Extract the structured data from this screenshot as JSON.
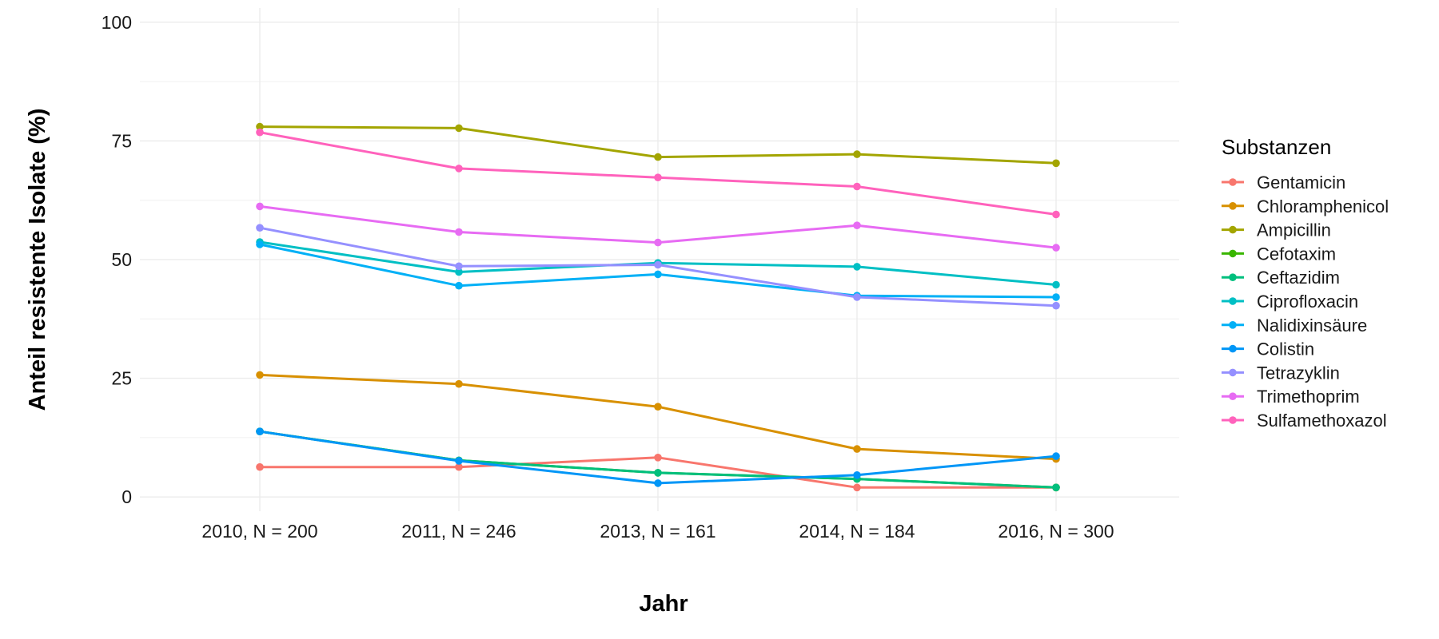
{
  "chart_data": {
    "type": "line",
    "xlabel": "Jahr",
    "ylabel": "Anteil resistente Isolate (%)",
    "categories": [
      "2010, N = 200",
      "2011, N = 246",
      "2013, N = 161",
      "2014, N = 184",
      "2016, N = 300"
    ],
    "ylim": [
      -3,
      103
    ],
    "yticks": [
      0,
      25,
      50,
      75,
      100
    ],
    "grid": true,
    "legend": {
      "title": "Substanzen",
      "position": "right"
    },
    "series": [
      {
        "name": "Gentamicin",
        "color": "#F8766D",
        "values": [
          6.3,
          6.3,
          8.3,
          2.0,
          2.0
        ]
      },
      {
        "name": "Chloramphenicol",
        "color": "#D89000",
        "values": [
          25.7,
          23.8,
          19.0,
          10.1,
          8.0
        ]
      },
      {
        "name": "Ampicillin",
        "color": "#A3A500",
        "values": [
          78.0,
          77.7,
          71.6,
          72.2,
          70.3
        ]
      },
      {
        "name": "Cefotaxim",
        "color": "#39B600",
        "values": [
          13.8,
          7.7,
          5.1,
          3.8,
          2.0
        ]
      },
      {
        "name": "Ceftazidim",
        "color": "#00BF7D",
        "values": [
          13.8,
          7.7,
          5.1,
          3.8,
          2.0
        ]
      },
      {
        "name": "Ciprofloxacin",
        "color": "#00BFC4",
        "values": [
          53.7,
          47.4,
          49.3,
          48.5,
          44.7
        ]
      },
      {
        "name": "Nalidixinsäure",
        "color": "#00B0F6",
        "values": [
          53.2,
          44.5,
          46.9,
          42.4,
          42.1
        ]
      },
      {
        "name": "Colistin",
        "color": "#0096F7",
        "values": [
          13.8,
          7.6,
          2.9,
          4.6,
          8.6
        ]
      },
      {
        "name": "Tetrazyklin",
        "color": "#9590FF",
        "values": [
          56.7,
          48.6,
          48.9,
          42.1,
          40.3
        ]
      },
      {
        "name": "Trimethoprim",
        "color": "#E76BF3",
        "values": [
          61.2,
          55.8,
          53.6,
          57.2,
          52.5
        ]
      },
      {
        "name": "Sulfamethoxazol",
        "color": "#FF62BC",
        "values": [
          76.8,
          69.2,
          67.3,
          65.4,
          59.5
        ]
      }
    ]
  }
}
